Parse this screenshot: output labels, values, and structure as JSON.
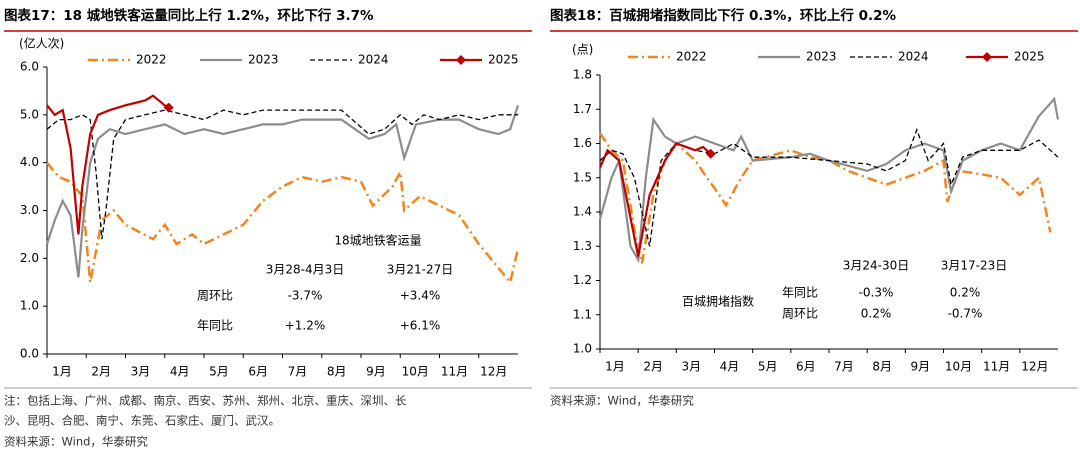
{
  "chart_data": [
    {
      "type": "line",
      "title": "图表17：18 城地铁客运量同比上行 1.2%，环比下行 3.7%",
      "y_label": "(亿人次)",
      "xlim": [
        1,
        13
      ],
      "xticks": [
        {
          "value": 1,
          "label": "1月"
        },
        {
          "value": 2,
          "label": "2月"
        },
        {
          "value": 3,
          "label": "3月"
        },
        {
          "value": 4,
          "label": "4月"
        },
        {
          "value": 5,
          "label": "5月"
        },
        {
          "value": 6,
          "label": "6月"
        },
        {
          "value": 7,
          "label": "7月"
        },
        {
          "value": 8,
          "label": "8月"
        },
        {
          "value": 9,
          "label": "9月"
        },
        {
          "value": 10,
          "label": "10月"
        },
        {
          "value": 11,
          "label": "11月"
        },
        {
          "value": 12,
          "label": "12月"
        }
      ],
      "ylim": [
        0,
        6
      ],
      "yticks": [
        {
          "value": 0,
          "label": "0.0"
        },
        {
          "value": 1,
          "label": "1.0"
        },
        {
          "value": 2,
          "label": "2.0"
        },
        {
          "value": 3,
          "label": "3.0"
        },
        {
          "value": 4,
          "label": "4.0"
        },
        {
          "value": 5,
          "label": "5.0"
        },
        {
          "value": 6,
          "label": "6.0"
        }
      ],
      "series": [
        {
          "name": "2022",
          "color": "#f0861e",
          "style": "dashdot",
          "x": [
            1,
            1.3,
            1.6,
            1.9,
            2.1,
            2.4,
            2.7,
            3,
            3.7,
            4,
            4.3,
            4.7,
            5,
            5.5,
            6,
            6.5,
            7,
            7.5,
            8,
            8.5,
            9,
            9.3,
            9.8,
            10,
            10.1,
            10.5,
            11,
            11.5,
            12,
            12.3,
            12.8,
            13
          ],
          "values": [
            4.0,
            3.7,
            3.6,
            3.3,
            1.5,
            2.8,
            3.0,
            2.7,
            2.4,
            2.7,
            2.3,
            2.5,
            2.3,
            2.5,
            2.7,
            3.2,
            3.5,
            3.7,
            3.6,
            3.7,
            3.6,
            3.1,
            3.5,
            3.8,
            3.0,
            3.3,
            3.1,
            2.9,
            2.3,
            2.0,
            1.5,
            2.2
          ]
        },
        {
          "name": "2023",
          "color": "#8c8c8c",
          "style": "solid",
          "x": [
            1,
            1.2,
            1.4,
            1.6,
            1.8,
            1.9,
            2.1,
            2.3,
            2.6,
            3,
            3.5,
            4,
            4.5,
            5,
            5.5,
            6,
            6.5,
            7,
            7.5,
            8,
            8.5,
            9.2,
            9.6,
            9.9,
            10.1,
            10.4,
            11,
            11.5,
            12,
            12.5,
            12.8,
            13
          ],
          "values": [
            2.3,
            2.8,
            3.2,
            2.9,
            1.6,
            2.6,
            4.0,
            4.5,
            4.7,
            4.6,
            4.7,
            4.8,
            4.6,
            4.7,
            4.6,
            4.7,
            4.8,
            4.8,
            4.9,
            4.9,
            4.9,
            4.5,
            4.6,
            4.8,
            4.1,
            4.8,
            4.9,
            4.9,
            4.7,
            4.6,
            4.7,
            5.2
          ]
        },
        {
          "name": "2024",
          "color": "#000000",
          "style": "dashed",
          "x": [
            1,
            1.3,
            1.6,
            1.9,
            2.1,
            2.25,
            2.4,
            2.5,
            2.7,
            3,
            3.5,
            4,
            4.5,
            5,
            5.5,
            6,
            6.5,
            7,
            7.5,
            8,
            8.5,
            9.2,
            9.6,
            10,
            10.3,
            10.6,
            11,
            11.5,
            12,
            12.5,
            13
          ],
          "values": [
            4.7,
            4.9,
            4.9,
            5.0,
            4.9,
            3.8,
            2.4,
            3.0,
            4.5,
            4.9,
            5.0,
            5.1,
            5.0,
            4.9,
            5.1,
            5.0,
            5.1,
            5.1,
            5.1,
            5.1,
            5.1,
            4.6,
            4.7,
            5.0,
            4.8,
            5.0,
            4.9,
            5.0,
            4.9,
            5.0,
            5.0
          ]
        },
        {
          "name": "2025",
          "color": "#c00000",
          "style": "solid",
          "marker": "diamond",
          "x": [
            1,
            1.2,
            1.4,
            1.6,
            1.8,
            1.9,
            2.1,
            2.3,
            2.6,
            3,
            3.5,
            3.7,
            4,
            4.1
          ],
          "values": [
            5.2,
            5.0,
            5.1,
            4.3,
            2.5,
            3.5,
            4.6,
            5.0,
            5.1,
            5.2,
            5.3,
            5.4,
            5.2,
            5.15
          ]
        }
      ],
      "annotation_table": {
        "title": "18城地铁客运量",
        "columns": [
          "3月28-4月3日",
          "3月21-27日"
        ],
        "rows": [
          {
            "label": "周环比",
            "values": [
              "-3.7%",
              "+3.4%"
            ]
          },
          {
            "label": "年同比",
            "values": [
              "+1.2%",
              "+6.1%"
            ]
          }
        ]
      },
      "notes": [
        "注：包括上海、广州、成都、南京、西安、苏州、郑州、北京、重庆、深圳、长",
        "沙、昆明、合肥、南宁、东莞、石家庄、厦门、武汉。",
        "资料来源：Wind，华泰研究"
      ]
    },
    {
      "type": "line",
      "title": "图表18：百城拥堵指数同比下行 0.3%，环比上行 0.2%",
      "y_label": "(点)",
      "xlim": [
        1,
        13
      ],
      "xticks": [
        {
          "value": 1,
          "label": "1月"
        },
        {
          "value": 2,
          "label": "2月"
        },
        {
          "value": 3,
          "label": "3月"
        },
        {
          "value": 4,
          "label": "4月"
        },
        {
          "value": 5,
          "label": "5月"
        },
        {
          "value": 6,
          "label": "6月"
        },
        {
          "value": 7,
          "label": "7月"
        },
        {
          "value": 8,
          "label": "8月"
        },
        {
          "value": 9,
          "label": "9月"
        },
        {
          "value": 10,
          "label": "10月"
        },
        {
          "value": 11,
          "label": "11月"
        },
        {
          "value": 12,
          "label": "12月"
        }
      ],
      "ylim": [
        1.0,
        1.8
      ],
      "yticks": [
        {
          "value": 1.0,
          "label": "1.0"
        },
        1.1,
        1.2,
        1.3,
        1.4,
        1.5,
        1.6,
        1.7,
        1.8
      ],
      "series": [
        {
          "name": "2022",
          "color": "#f0861e",
          "style": "dashdot",
          "x": [
            1,
            1.3,
            1.6,
            1.9,
            2.1,
            2.4,
            2.7,
            3,
            3.5,
            3.8,
            4,
            4.3,
            4.7,
            5,
            6,
            6.5,
            7,
            7.5,
            8,
            8.5,
            9,
            9.5,
            10,
            10.1,
            10.4,
            11,
            11.5,
            12,
            12.5,
            12.8
          ],
          "values": [
            1.63,
            1.58,
            1.55,
            1.35,
            1.25,
            1.45,
            1.55,
            1.6,
            1.55,
            1.5,
            1.47,
            1.42,
            1.5,
            1.55,
            1.58,
            1.56,
            1.55,
            1.52,
            1.5,
            1.48,
            1.5,
            1.52,
            1.55,
            1.43,
            1.52,
            1.51,
            1.5,
            1.45,
            1.5,
            1.34
          ]
        },
        {
          "name": "2023",
          "color": "#8c8c8c",
          "style": "solid",
          "x": [
            1,
            1.3,
            1.5,
            1.8,
            2,
            2.2,
            2.4,
            2.7,
            3,
            3.5,
            4,
            4.5,
            4.7,
            5,
            6,
            6.5,
            7,
            8,
            8.5,
            9,
            9.5,
            10,
            10.2,
            10.5,
            11,
            11.5,
            12,
            12.5,
            12.9,
            13
          ],
          "values": [
            1.38,
            1.5,
            1.55,
            1.3,
            1.26,
            1.5,
            1.67,
            1.62,
            1.6,
            1.62,
            1.6,
            1.58,
            1.62,
            1.55,
            1.56,
            1.57,
            1.55,
            1.52,
            1.54,
            1.58,
            1.6,
            1.58,
            1.46,
            1.55,
            1.58,
            1.6,
            1.58,
            1.68,
            1.73,
            1.67
          ]
        },
        {
          "name": "2024",
          "color": "#000000",
          "style": "dashed",
          "x": [
            1,
            1.3,
            1.6,
            1.9,
            2.3,
            2.6,
            3,
            3.5,
            4,
            4.5,
            5,
            6,
            7,
            8,
            8.5,
            9,
            9.3,
            9.6,
            10,
            10.2,
            10.5,
            11,
            12,
            12.5,
            12.8,
            13
          ],
          "values": [
            1.55,
            1.58,
            1.57,
            1.5,
            1.3,
            1.55,
            1.6,
            1.58,
            1.57,
            1.6,
            1.56,
            1.56,
            1.55,
            1.54,
            1.52,
            1.55,
            1.64,
            1.55,
            1.6,
            1.48,
            1.56,
            1.58,
            1.58,
            1.61,
            1.58,
            1.56
          ]
        },
        {
          "name": "2025",
          "color": "#c00000",
          "style": "solid",
          "marker": "diamond",
          "x": [
            1,
            1.2,
            1.5,
            2,
            2.3,
            2.7,
            3,
            3.5,
            3.7,
            3.9
          ],
          "values": [
            1.53,
            1.58,
            1.55,
            1.27,
            1.45,
            1.55,
            1.6,
            1.58,
            1.59,
            1.57
          ]
        }
      ],
      "annotation_table": {
        "title": "百城拥堵指数",
        "columns": [
          "3月24-30日",
          "3月17-23日"
        ],
        "rows": [
          {
            "label": "年同比",
            "values": [
              "-0.3%",
              "0.2%"
            ]
          },
          {
            "label": "周环比",
            "values": [
              "0.2%",
              "-0.7%"
            ]
          }
        ]
      },
      "notes": [
        "资料来源：Wind，华泰研究"
      ]
    }
  ]
}
